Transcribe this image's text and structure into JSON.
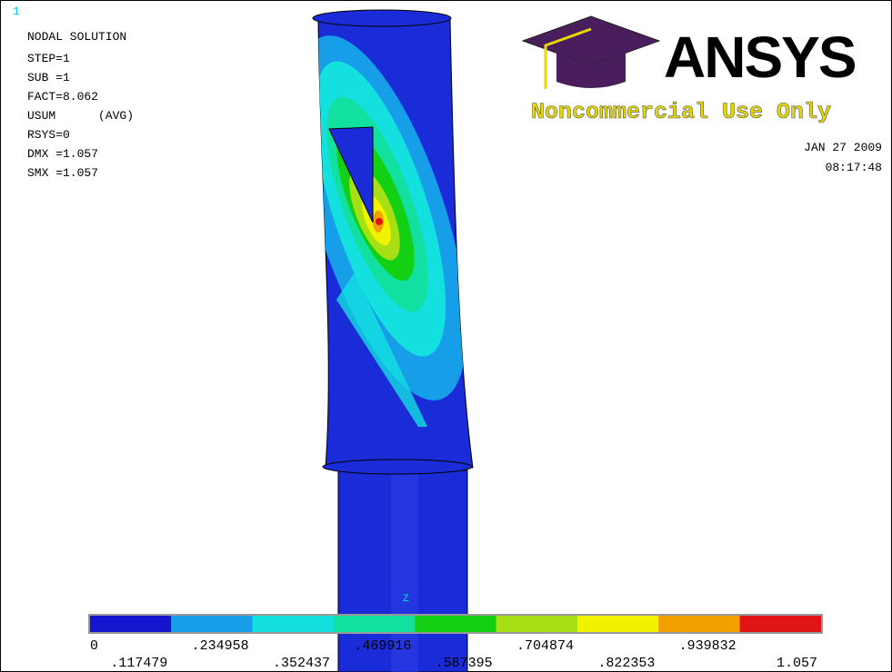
{
  "window_number": "1",
  "header": {
    "title": "NODAL SOLUTION",
    "lines": [
      "STEP=1",
      "SUB =1",
      "FACT=8.062",
      "USUM      (AVG)",
      "RSYS=0",
      "DMX =1.057",
      "SMX =1.057"
    ]
  },
  "logo": {
    "brand": "ANSYS",
    "notice": "Noncommercial Use Only"
  },
  "timestamp": {
    "date": "JAN 27 2009",
    "time": "08:17:48"
  },
  "axis_label": "Z",
  "legend": {
    "colors": [
      "#1515d0",
      "#179ee8",
      "#14e0e0",
      "#12e0a0",
      "#14d014",
      "#a6e014",
      "#f2f200",
      "#f2a000",
      "#e01414"
    ],
    "labels": [
      "0",
      ".117479",
      ".234958",
      ".352437",
      ".469916",
      ".587395",
      ".704874",
      ".822353",
      ".939832",
      "1.057"
    ]
  }
}
